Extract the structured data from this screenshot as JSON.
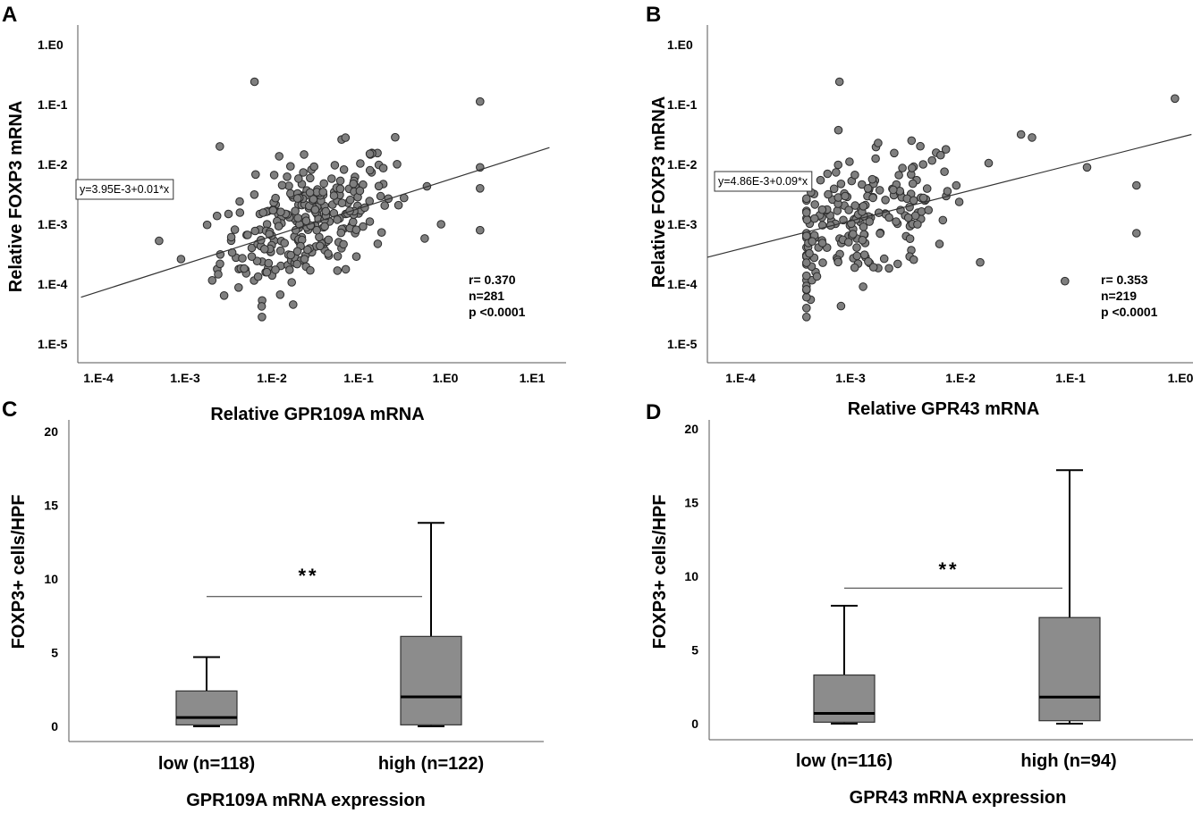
{
  "chart_data": [
    {
      "type": "scatter",
      "panel": "A",
      "xlabel": "Relative GPR109A mRNA",
      "ylabel": "Relative FOXP3 mRNA",
      "x_ticks": [
        "1.E-4",
        "1.E-3",
        "1.E-2",
        "1.E-1",
        "1.E0",
        "1.E1"
      ],
      "y_ticks": [
        "1.E0",
        "1.E-1",
        "1.E-2",
        "1.E-3",
        "1.E-4",
        "1.E-5"
      ],
      "xlim_log10": [
        -4.2,
        1.2
      ],
      "ylim_log10": [
        -5.5,
        0.3
      ],
      "scale": "log-log",
      "fit_line": {
        "label": "y=3.95E-3+0.01*x",
        "start_log10": [
          -4.2,
          -4.22
        ],
        "end_log10": [
          1.2,
          -1.72
        ]
      },
      "stats": [
        "r= 0.370",
        "n=281",
        "p <0.0001"
      ],
      "n_points": 281,
      "cloud_center_log10": [
        -1.6,
        -2.95
      ],
      "extra_points_log10": [
        [
          -2.2,
          -0.62
        ],
        [
          0.4,
          -0.95
        ],
        [
          0.4,
          -2.05
        ],
        [
          0.4,
          -2.4
        ],
        [
          0.4,
          -3.1
        ],
        [
          -0.05,
          -3.0
        ],
        [
          -2.6,
          -1.7
        ]
      ]
    },
    {
      "type": "scatter",
      "panel": "B",
      "xlabel": "Relative GPR43 mRNA",
      "ylabel": "Relative FOXP3 mRNA",
      "x_ticks": [
        "1.E-4",
        "1.E-3",
        "1.E-2",
        "1.E-1",
        "1.E0"
      ],
      "y_ticks": [
        "1.E0",
        "1.E-1",
        "1.E-2",
        "1.E-3",
        "1.E-4",
        "1.E-5"
      ],
      "xlim_log10": [
        -4.3,
        0.1
      ],
      "ylim_log10": [
        -5.5,
        0.3
      ],
      "scale": "log-log",
      "fit_line": {
        "label": "y=4.86E-3+0.09*x",
        "start_log10": [
          -4.3,
          -3.55
        ],
        "end_log10": [
          0.1,
          -1.5
        ]
      },
      "stats": [
        "r= 0.353",
        "n=219",
        "p <0.0001"
      ],
      "n_points": 219,
      "cloud_center_log10": [
        -2.9,
        -2.95
      ],
      "extra_points_log10": [
        [
          -3.1,
          -0.62
        ],
        [
          -0.05,
          -0.9
        ],
        [
          -0.4,
          -2.35
        ],
        [
          -0.4,
          -3.15
        ],
        [
          -1.05,
          -3.95
        ],
        [
          -0.85,
          -2.05
        ],
        [
          -1.45,
          -1.5
        ],
        [
          -1.35,
          -1.55
        ]
      ]
    },
    {
      "type": "box",
      "panel": "C",
      "title": "",
      "xlabel": "GPR109A mRNA expression",
      "ylabel": "FOXP3+ cells/HPF",
      "categories": [
        "low (n=118)",
        "high (n=122)"
      ],
      "y_ticks": [
        "0",
        "5",
        "10",
        "15",
        "20"
      ],
      "ylim": [
        0,
        20
      ],
      "boxes": [
        {
          "min": 0,
          "q1": 0.1,
          "median": 0.6,
          "q3": 2.4,
          "max": 4.7
        },
        {
          "min": 0,
          "q1": 0.1,
          "median": 2.0,
          "q3": 6.1,
          "max": 13.8
        }
      ],
      "significance": "**"
    },
    {
      "type": "box",
      "panel": "D",
      "title": "",
      "xlabel": "GPR43 mRNA expression",
      "ylabel": "FOXP3+ cells/HPF",
      "categories": [
        "low (n=116)",
        "high (n=94)"
      ],
      "y_ticks": [
        "0",
        "5",
        "10",
        "15",
        "20"
      ],
      "ylim": [
        0,
        20
      ],
      "boxes": [
        {
          "min": 0,
          "q1": 0.1,
          "median": 0.7,
          "q3": 3.3,
          "max": 8.0
        },
        {
          "min": 0,
          "q1": 0.2,
          "median": 1.8,
          "q3": 7.2,
          "max": 17.2
        }
      ],
      "significance": "**"
    }
  ],
  "colors": {
    "point_fill": "#7f7f7f",
    "point_stroke": "#2b2b2b",
    "box_fill": "#8c8c8c",
    "axis": "#555555",
    "text": "#000000"
  }
}
